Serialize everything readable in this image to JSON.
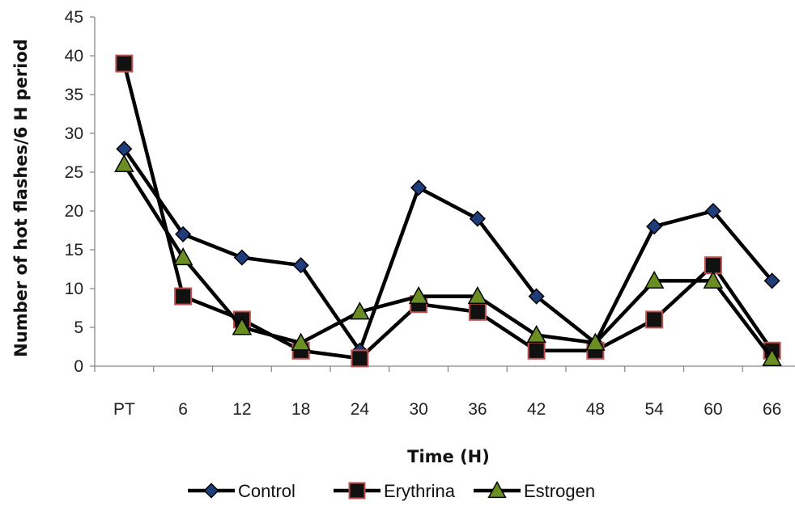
{
  "chart_data": {
    "type": "line",
    "categories": [
      "PT",
      "6",
      "12",
      "18",
      "24",
      "30",
      "36",
      "42",
      "48",
      "54",
      "60",
      "66"
    ],
    "series": [
      {
        "name": "Control",
        "marker": "diamond",
        "color": "#000000",
        "marker_fill": "#1f3d7a",
        "values": [
          28,
          17,
          14,
          13,
          2,
          23,
          19,
          9,
          3,
          18,
          20,
          11
        ]
      },
      {
        "name": "Erythrina",
        "marker": "square",
        "color": "#000000",
        "marker_fill": "#111111",
        "marker_stroke": "#c0504d",
        "values": [
          39,
          9,
          6,
          2,
          1,
          8,
          7,
          2,
          2,
          6,
          13,
          2
        ]
      },
      {
        "name": "Estrogen",
        "marker": "triangle",
        "color": "#000000",
        "marker_fill": "#6b8e23",
        "values": [
          26,
          14,
          5,
          3,
          7,
          9,
          9,
          4,
          3,
          11,
          11,
          1
        ]
      }
    ],
    "xlabel": "Time (H)",
    "ylabel": "Number of hot flashes/6 H period",
    "ylim": [
      0,
      45
    ],
    "yticks": [
      0,
      5,
      10,
      15,
      20,
      25,
      30,
      35,
      40,
      45
    ],
    "grid": false,
    "legend": "bottom-center"
  }
}
